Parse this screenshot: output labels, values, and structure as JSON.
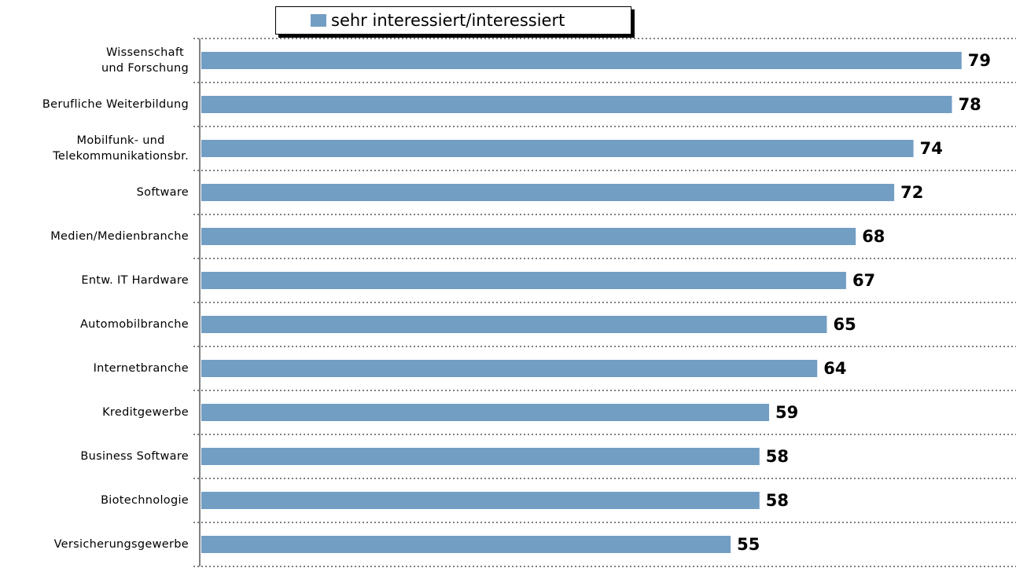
{
  "chart_data": {
    "type": "bar",
    "orientation": "horizontal",
    "categories": [
      "Wissenschaft\nund Forschung",
      "Berufliche Weiterbildung",
      "Mobilfunk- und\nTelekommunikationsbr.",
      "Software",
      "Medien/Medienbranche",
      "Entw. IT Hardware",
      "Automobilbranche",
      "Internetbranche",
      "Kreditgewerbe",
      "Business Software",
      "Biotechnologie",
      "Versicherungsgewerbe"
    ],
    "series": [
      {
        "name": "sehr interessiert/interessiert",
        "color": "#739ec4",
        "values": [
          79,
          78,
          74,
          72,
          68,
          67,
          65,
          64,
          59,
          58,
          58,
          55
        ]
      }
    ],
    "xlim": [
      0,
      84
    ],
    "legend": "top"
  }
}
